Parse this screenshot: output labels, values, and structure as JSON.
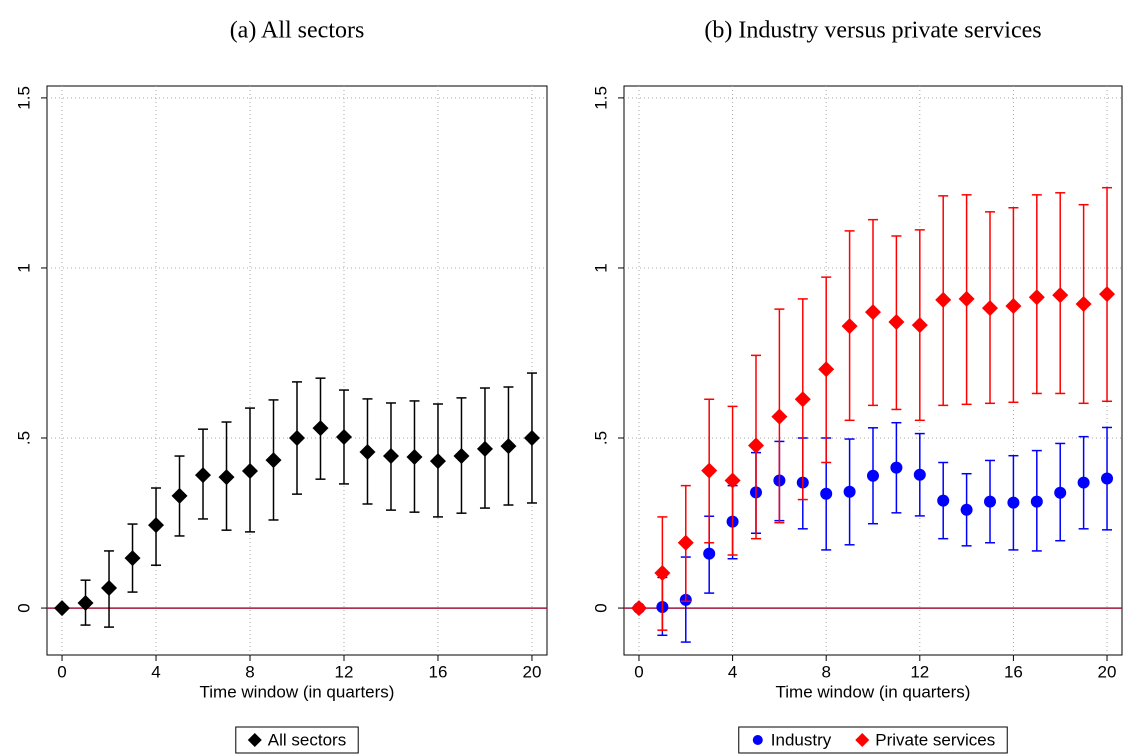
{
  "chart_data": [
    {
      "type": "errorbar",
      "title": "(a) All sectors",
      "xlabel": "Time window (in quarters)",
      "x": [
        0,
        1,
        2,
        3,
        4,
        5,
        6,
        7,
        8,
        9,
        10,
        11,
        12,
        13,
        14,
        15,
        16,
        17,
        18,
        19,
        20
      ],
      "series": [
        {
          "name": "All sectors",
          "color": "#000000",
          "marker": "diamond",
          "values": [
            0,
            0.015,
            0.059,
            0.147,
            0.244,
            0.33,
            0.391,
            0.385,
            0.403,
            0.435,
            0.5,
            0.529,
            0.503,
            0.459,
            0.447,
            0.444,
            0.432,
            0.447,
            0.468,
            0.476,
            0.5
          ],
          "lower": [
            0,
            -0.05,
            -0.056,
            0.047,
            0.126,
            0.212,
            0.262,
            0.229,
            0.224,
            0.259,
            0.335,
            0.379,
            0.365,
            0.306,
            0.288,
            0.282,
            0.268,
            0.279,
            0.294,
            0.303,
            0.309
          ],
          "upper": [
            0,
            0.082,
            0.168,
            0.247,
            0.353,
            0.447,
            0.526,
            0.547,
            0.588,
            0.612,
            0.665,
            0.676,
            0.641,
            0.615,
            0.603,
            0.609,
            0.6,
            0.618,
            0.647,
            0.65,
            0.691
          ]
        }
      ],
      "xlim": [
        -0.64,
        20.64
      ],
      "xticks": [
        0,
        4,
        8,
        12,
        16,
        20
      ],
      "ylim": [
        -0.138,
        1.535
      ],
      "yticks": [
        0,
        {
          "value": 0.5,
          "label": ".5"
        },
        1,
        1.5
      ],
      "reference_line": 0,
      "reference_color": "#a0163c",
      "grid": true,
      "legend": "bottom"
    },
    {
      "type": "errorbar",
      "title": "(b) Industry versus private services",
      "xlabel": "Time window (in quarters)",
      "x": [
        0,
        1,
        2,
        3,
        4,
        5,
        6,
        7,
        8,
        9,
        10,
        11,
        12,
        13,
        14,
        15,
        16,
        17,
        18,
        19,
        20
      ],
      "series": [
        {
          "name": "Industry",
          "color": "#0000ff",
          "marker": "circle",
          "values": [
            0,
            0.003,
            0.024,
            0.16,
            0.254,
            0.34,
            0.375,
            0.369,
            0.336,
            0.342,
            0.389,
            0.413,
            0.392,
            0.316,
            0.289,
            0.313,
            0.31,
            0.313,
            0.339,
            0.369,
            0.381
          ],
          "lower": [
            0,
            -0.08,
            -0.1,
            0.044,
            0.145,
            0.22,
            0.257,
            0.233,
            0.171,
            0.186,
            0.248,
            0.28,
            0.271,
            0.204,
            0.183,
            0.192,
            0.171,
            0.168,
            0.198,
            0.233,
            0.23
          ],
          "upper": [
            0,
            0.09,
            0.15,
            0.27,
            0.36,
            0.457,
            0.49,
            0.5,
            0.5,
            0.497,
            0.53,
            0.545,
            0.513,
            0.428,
            0.395,
            0.434,
            0.448,
            0.463,
            0.484,
            0.504,
            0.531
          ]
        },
        {
          "name": "Private services",
          "color": "#ff0000",
          "marker": "diamond",
          "values": [
            0,
            0.103,
            0.192,
            0.404,
            0.375,
            0.478,
            0.563,
            0.614,
            0.702,
            0.829,
            0.87,
            0.841,
            0.832,
            0.906,
            0.909,
            0.882,
            0.888,
            0.914,
            0.92,
            0.894,
            0.923
          ],
          "lower": [
            0,
            -0.065,
            0.02,
            0.192,
            0.156,
            0.204,
            0.251,
            0.319,
            0.428,
            0.552,
            0.596,
            0.584,
            0.552,
            0.596,
            0.599,
            0.602,
            0.605,
            0.631,
            0.631,
            0.602,
            0.608
          ],
          "upper": [
            0,
            0.268,
            0.36,
            0.614,
            0.593,
            0.743,
            0.879,
            0.909,
            0.973,
            1.109,
            1.142,
            1.094,
            1.112,
            1.212,
            1.215,
            1.165,
            1.177,
            1.215,
            1.221,
            1.186,
            1.236
          ]
        }
      ],
      "xlim": [
        -0.64,
        20.64
      ],
      "xticks": [
        0,
        4,
        8,
        12,
        16,
        20
      ],
      "ylim": [
        -0.138,
        1.535
      ],
      "yticks": [
        0,
        {
          "value": 0.5,
          "label": ".5"
        },
        1,
        1.5
      ],
      "reference_line": 0,
      "reference_color": "#a0163c",
      "grid": true,
      "legend": "bottom"
    }
  ]
}
